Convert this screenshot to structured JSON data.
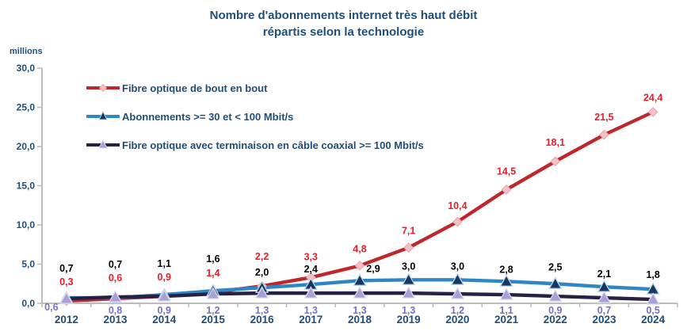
{
  "header": {
    "title_line1": "Nombre d'abonnements internet très haut débit",
    "title_line2": "répartis selon la technologie",
    "unit_label": "millions"
  },
  "colors": {
    "title_text": "#1f4e79",
    "axis_line": "#bdbdbd",
    "tick_label": "#1f4e79",
    "year_label": "#1f4e79"
  },
  "chart_data": {
    "type": "line",
    "title": "Nombre d'abonnements internet très haut débit répartis selon la technologie",
    "ylabel": "millions",
    "xlabel": "",
    "ylim": [
      0,
      30
    ],
    "ytick_step": 5,
    "ytick_labels": [
      "0,0",
      "5,0",
      "10,0",
      "15,0",
      "20,0",
      "25,0",
      "30,0"
    ],
    "grid": false,
    "legend_position": "upper-left",
    "categories": [
      "2012",
      "2013",
      "2014",
      "2015",
      "2016",
      "2017",
      "2018",
      "2019",
      "2020",
      "2021",
      "2022",
      "2023",
      "2024"
    ],
    "series": [
      {
        "name": "Fibre optique de bout en bout",
        "color": "#c0272d",
        "label_color": "#e91c2a",
        "marker": "diamond",
        "marker_fill": "#f4c2c6",
        "marker_stroke": "#eca9b0",
        "values": [
          0.3,
          0.6,
          0.9,
          1.4,
          2.2,
          3.3,
          4.8,
          7.1,
          10.4,
          14.5,
          18.1,
          21.5,
          24.4
        ],
        "labels": [
          "0,3",
          "0,6",
          "0,9",
          "1,4",
          "2,2",
          "3,3",
          "4,8",
          "7,1",
          "10,4",
          "14,5",
          "18,1",
          "21,5",
          "24,4"
        ]
      },
      {
        "name": "Abonnements >= 30 et < 100 Mbit/s",
        "color": "#2f86c5",
        "label_color": "#000000",
        "marker": "triangle",
        "marker_fill": "#17375e",
        "marker_stroke": "#b8d4ec",
        "values": [
          0.7,
          0.7,
          1.1,
          1.6,
          2.0,
          2.4,
          2.9,
          3.0,
          3.0,
          2.8,
          2.5,
          2.1,
          1.8
        ],
        "labels": [
          "0,7",
          "0,7",
          "1,1",
          "1,6",
          "2,0",
          "2,4",
          "2,9",
          "3,0",
          "3,0",
          "2,8",
          "2,5",
          "2,1",
          "1,8"
        ]
      },
      {
        "name": "Fibre optique avec terminaison en câble coaxial >= 100 Mbit/s",
        "color": "#242145",
        "label_color": "#7a6fc4",
        "marker": "triangle",
        "marker_fill": "#a7a2d3",
        "marker_stroke": "#ddd8ee",
        "values": [
          0.6,
          0.8,
          0.9,
          1.2,
          1.3,
          1.3,
          1.3,
          1.3,
          1.2,
          1.1,
          0.9,
          0.7,
          0.5
        ],
        "labels": [
          "0,6",
          "0,8",
          "0,9",
          "1,2",
          "1,3",
          "1,3",
          "1,3",
          "1,3",
          "1,2",
          "1,1",
          "0,9",
          "0,7",
          "0,5"
        ]
      }
    ]
  }
}
